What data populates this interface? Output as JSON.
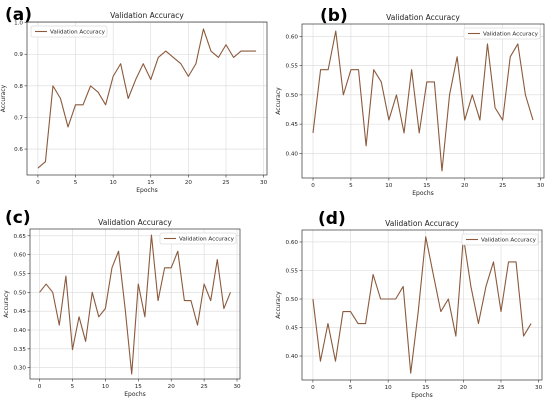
{
  "chart_data": [
    {
      "panel": "(a)",
      "type": "line",
      "title": "Validation Accuracy",
      "xlabel": "Epochs",
      "ylabel": "Accuracy",
      "series": [
        {
          "name": "Validation Accuracy",
          "color": "#8b5a3c",
          "x": [
            0,
            1,
            2,
            3,
            4,
            5,
            6,
            7,
            8,
            9,
            10,
            11,
            12,
            13,
            14,
            15,
            16,
            17,
            18,
            19,
            20,
            21,
            22,
            23,
            24,
            25,
            26,
            27,
            28,
            29
          ],
          "values": [
            0.54,
            0.56,
            0.8,
            0.76,
            0.67,
            0.74,
            0.74,
            0.8,
            0.78,
            0.74,
            0.83,
            0.87,
            0.76,
            0.82,
            0.87,
            0.82,
            0.89,
            0.91,
            0.89,
            0.87,
            0.83,
            0.87,
            0.98,
            0.91,
            0.89,
            0.93,
            0.89,
            0.91,
            0.91,
            0.91
          ]
        }
      ],
      "xlim": [
        -1.45,
        30.45
      ],
      "ylim": [
        0.518,
        1.002
      ],
      "xticks": [
        0,
        5,
        10,
        15,
        20,
        25,
        30
      ],
      "yticks": [
        0.6,
        0.7,
        0.8,
        0.9,
        1.0
      ],
      "ytick_labels": [
        "0.6",
        "0.7",
        "0.8",
        "0.9",
        "1.0"
      ],
      "legend": "top-left",
      "grid": true
    },
    {
      "panel": "(b)",
      "type": "line",
      "title": "Validation Accuracy",
      "xlabel": "Epochs",
      "ylabel": "Accuracy",
      "series": [
        {
          "name": "Validation Accuracy",
          "color": "#8b5a3c",
          "x": [
            0,
            1,
            2,
            3,
            4,
            5,
            6,
            7,
            8,
            9,
            10,
            11,
            12,
            13,
            14,
            15,
            16,
            17,
            18,
            19,
            20,
            21,
            22,
            23,
            24,
            25,
            26,
            27,
            28,
            29
          ],
          "values": [
            0.435,
            0.543,
            0.543,
            0.609,
            0.5,
            0.543,
            0.543,
            0.413,
            0.543,
            0.522,
            0.457,
            0.5,
            0.435,
            0.543,
            0.435,
            0.522,
            0.522,
            0.37,
            0.5,
            0.565,
            0.457,
            0.5,
            0.457,
            0.587,
            0.478,
            0.457,
            0.565,
            0.587,
            0.5,
            0.457
          ]
        }
      ],
      "xlim": [
        -1.45,
        30.45
      ],
      "ylim": [
        0.358,
        0.621
      ],
      "xticks": [
        0,
        5,
        10,
        15,
        20,
        25,
        30
      ],
      "yticks": [
        0.4,
        0.45,
        0.5,
        0.55,
        0.6
      ],
      "ytick_labels": [
        "0.40",
        "0.45",
        "0.50",
        "0.55",
        "0.60"
      ],
      "legend": "top-right",
      "grid": true
    },
    {
      "panel": "(c)",
      "type": "line",
      "title": "Validation Accuracy",
      "xlabel": "Epochs",
      "ylabel": "Accuracy",
      "series": [
        {
          "name": "Validation Accuracy",
          "color": "#8b5a3c",
          "x": [
            0,
            1,
            2,
            3,
            4,
            5,
            6,
            7,
            8,
            9,
            10,
            11,
            12,
            13,
            14,
            15,
            16,
            17,
            18,
            19,
            20,
            21,
            22,
            23,
            24,
            25,
            26,
            27,
            28,
            29
          ],
          "values": [
            0.5,
            0.522,
            0.5,
            0.413,
            0.543,
            0.348,
            0.435,
            0.37,
            0.5,
            0.435,
            0.457,
            0.565,
            0.609,
            0.457,
            0.283,
            0.522,
            0.435,
            0.652,
            0.478,
            0.565,
            0.565,
            0.609,
            0.478,
            0.478,
            0.413,
            0.522,
            0.478,
            0.587,
            0.457,
            0.5
          ]
        }
      ],
      "xlim": [
        -1.45,
        30.45
      ],
      "ylim": [
        0.27,
        0.668
      ],
      "xticks": [
        0,
        5,
        10,
        15,
        20,
        25,
        30
      ],
      "yticks": [
        0.3,
        0.35,
        0.4,
        0.45,
        0.5,
        0.55,
        0.6,
        0.65
      ],
      "ytick_labels": [
        "0.30",
        "0.35",
        "0.40",
        "0.45",
        "0.50",
        "0.55",
        "0.60",
        "0.65"
      ],
      "legend": "top-right",
      "grid": true
    },
    {
      "panel": "(d)",
      "type": "line",
      "title": "Validation Accuracy",
      "xlabel": "Epochs",
      "ylabel": "Accuracy",
      "series": [
        {
          "name": "Validation Accuracy",
          "color": "#8b5a3c",
          "x": [
            0,
            1,
            2,
            3,
            4,
            5,
            6,
            7,
            8,
            9,
            10,
            11,
            12,
            13,
            14,
            15,
            16,
            17,
            18,
            19,
            20,
            21,
            22,
            23,
            24,
            25,
            26,
            27,
            28,
            29
          ],
          "values": [
            0.5,
            0.391,
            0.457,
            0.391,
            0.478,
            0.478,
            0.457,
            0.457,
            0.543,
            0.5,
            0.5,
            0.5,
            0.522,
            0.37,
            0.478,
            0.609,
            0.543,
            0.478,
            0.5,
            0.435,
            0.609,
            0.522,
            0.457,
            0.522,
            0.565,
            0.478,
            0.565,
            0.565,
            0.435,
            0.457
          ]
        }
      ],
      "xlim": [
        -1.45,
        30.45
      ],
      "ylim": [
        0.358,
        0.621
      ],
      "xticks": [
        0,
        5,
        10,
        15,
        20,
        25,
        30
      ],
      "yticks": [
        0.4,
        0.45,
        0.5,
        0.55,
        0.6
      ],
      "ytick_labels": [
        "0.40",
        "0.45",
        "0.50",
        "0.55",
        "0.60"
      ],
      "legend": "top-right",
      "grid": true
    }
  ]
}
